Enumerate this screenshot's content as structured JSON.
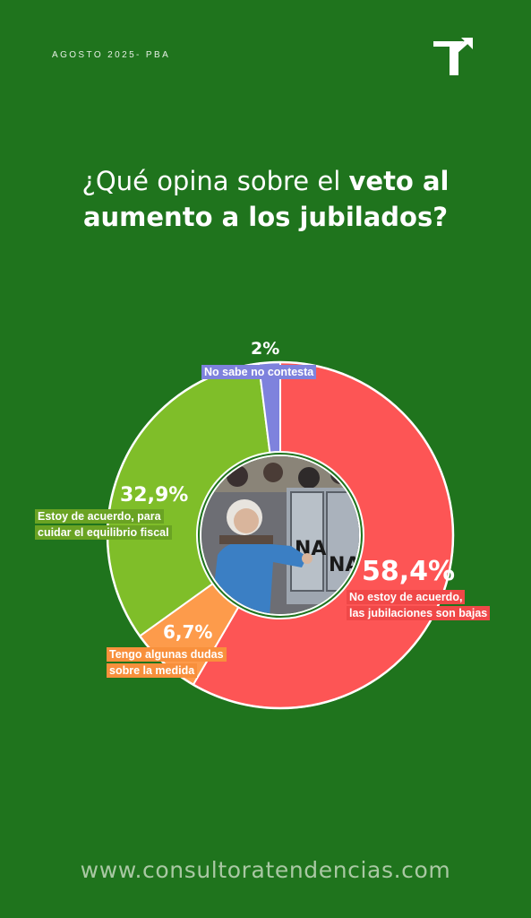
{
  "header": {
    "date_label": "AGOSTO 2025- PBA"
  },
  "title": {
    "part1": "¿Qué opina sobre el ",
    "bold": "veto al aumento a los jubilados?"
  },
  "chart_data": {
    "type": "pie",
    "title": "¿Qué opina sobre el veto al aumento a los jubilados?",
    "slices": [
      {
        "label": "No estoy de acuerdo, las jubilaciones son bajas",
        "value": 58.4,
        "value_label": "58,4%",
        "color": "#fd5555"
      },
      {
        "label": "Tengo algunas dudas sobre la medida",
        "value": 6.7,
        "value_label": "6,7%",
        "color": "#fd9b4b"
      },
      {
        "label": "Estoy de acuerdo, para cuidar el equilibrio fiscal",
        "value": 32.9,
        "value_label": "32,9%",
        "color": "#7fbe29"
      },
      {
        "label": "No sabe no contesta",
        "value": 2,
        "value_label": "2%",
        "color": "#7e82dd"
      }
    ]
  },
  "labels": {
    "red_line1": "No estoy de acuerdo,",
    "red_line2": "las jubilaciones son bajas",
    "orange_line1": "Tengo algunas dudas",
    "orange_line2": "sobre la medida",
    "green_line1": "Estoy de acuerdo, para",
    "green_line2": "cuidar el equilibrio fiscal",
    "purple_line1": "No sabe no contesta"
  },
  "colors": {
    "background": "#1f741d",
    "red": "#fd5555",
    "orange": "#fd9b4b",
    "green": "#7fbe29",
    "purple": "#7e82dd"
  },
  "footer": {
    "url": "www.consultoratendencias.com"
  }
}
